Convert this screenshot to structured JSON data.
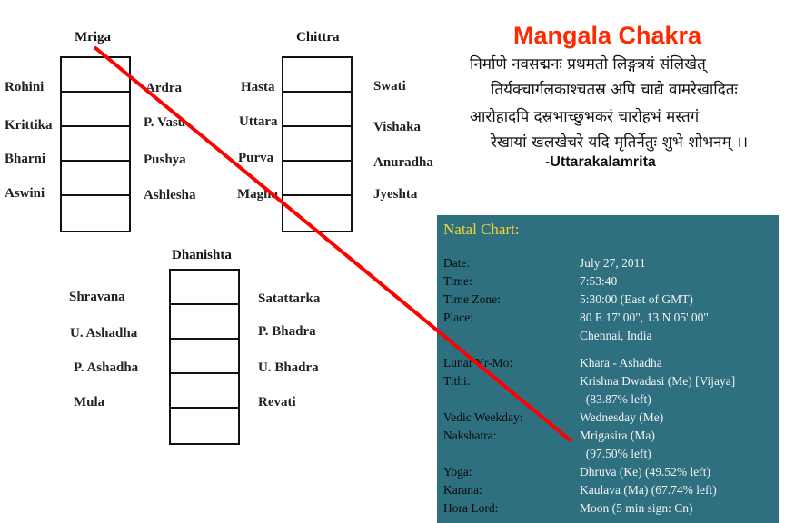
{
  "title": "Mangala Chakra",
  "verse": [
    "निर्माणे नवसद्मनः प्रथमतो लिङ्गत्रयं संलिखेत्",
    "तिर्यक्चार्गलकाश्चतस्र अपि चाद्ये वामरेखादितः",
    "आरोहादपि दस्रभाच्छुभकरं चारोहभं मस्तगं",
    "रेखायां खलखेचरे यदि मृतिर्नेतुः शुभे शोभनम् ।।"
  ],
  "source": "-Uttarakalamrita",
  "columns": [
    {
      "head": "Mriga",
      "left": [
        "Rohini",
        "Krittika",
        "Bharni",
        "Aswini"
      ],
      "right": [
        "Ardra",
        "P. Vasu",
        "Pushya",
        "Ashlesha"
      ]
    },
    {
      "head": "Chittra",
      "left": [
        "Hasta",
        "Uttara",
        "Purva",
        "Magha"
      ],
      "right": [
        "Swati",
        "Vishaka",
        "Anuradha",
        "Jyeshta"
      ]
    },
    {
      "head": "Dhanishta",
      "left": [
        "Shravana",
        "U. Ashadha",
        "P. Ashadha",
        "Mula"
      ],
      "right": [
        "Satattarka",
        "P. Bhadra",
        "U. Bhadra",
        "Revati"
      ]
    }
  ],
  "natal": {
    "title": "Natal Chart:",
    "rows": [
      {
        "k": "Date:",
        "v": "July 27, 2011"
      },
      {
        "k": "Time:",
        "v": "7:53:40"
      },
      {
        "k": "Time Zone:",
        "v": "5:30:00 (East of GMT)"
      },
      {
        "k": "Place:",
        "v": "80 E 17' 00\", 13 N 05' 00\""
      },
      {
        "k": "",
        "v": "Chennai, India"
      },
      {
        "k": "Lunar Yr-Mo:",
        "v": "Khara - Ashadha"
      },
      {
        "k": "Tithi:",
        "v": "Krishna Dwadasi (Me) [Vijaya]"
      },
      {
        "k": "",
        "v": "  (83.87% left)"
      },
      {
        "k": "Vedic Weekday:",
        "v": "Wednesday (Me)"
      },
      {
        "k": "Nakshatra:",
        "v": "Mrigasira (Ma)"
      },
      {
        "k": "",
        "v": "  (97.50% left)"
      },
      {
        "k": "Yoga:",
        "v": "Dhruva (Ke) (49.52% left)"
      },
      {
        "k": "Karana:",
        "v": "Kaulava (Ma) (67.74% left)"
      },
      {
        "k": "Hora Lord:",
        "v": "Moon (5 min sign: Cn)"
      }
    ]
  },
  "colors": {
    "title": "#ff2a00",
    "panel": "#2e6f80",
    "panel_title": "#f2d630",
    "pointer_line": "#ff0000"
  }
}
